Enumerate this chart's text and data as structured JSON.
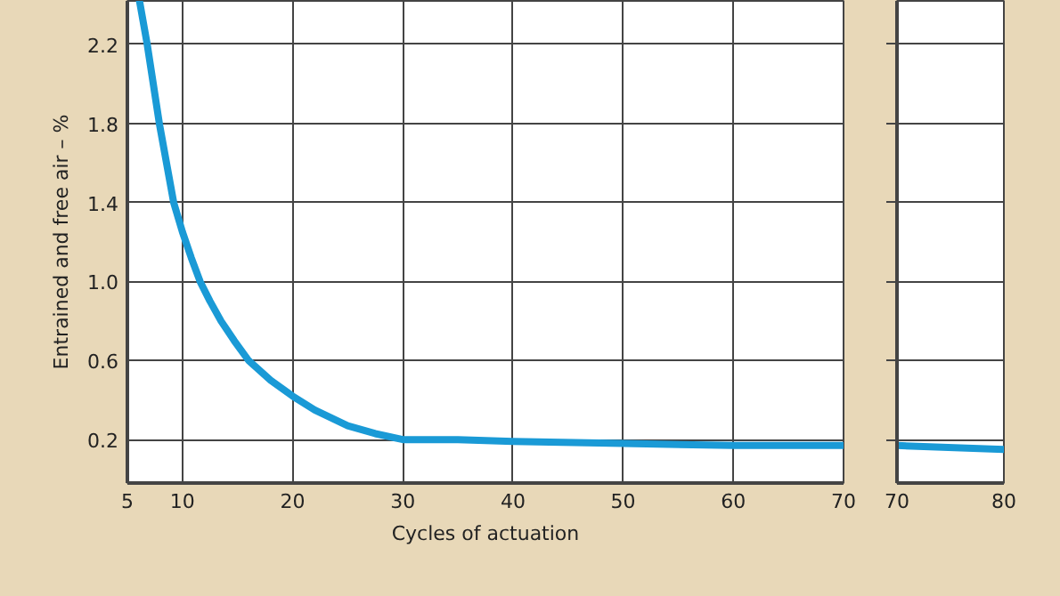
{
  "chart_data": [
    {
      "type": "line",
      "xlabel": "Cycles of actuation",
      "ylabel": "Entrained and free air – %",
      "xlim": [
        5,
        70
      ],
      "xticks": [
        5,
        10,
        20,
        30,
        40,
        50,
        60,
        70
      ],
      "ylim": [
        -0.02,
        2.42
      ],
      "yticks": [
        0.2,
        0.6,
        {
          "value": 1.0,
          "label": "1.0"
        },
        1.4,
        1.8,
        2.2
      ],
      "grid": true,
      "series": [
        {
          "color": "#1a9ad6",
          "x": [
            6.1,
            6.8,
            7.9,
            9.2,
            10,
            10.8,
            11.6,
            12.5,
            13.5,
            14.7,
            16.0,
            18,
            20,
            22,
            25,
            27.5,
            30,
            35,
            40,
            50,
            60,
            70
          ],
          "values": [
            2.42,
            2.2,
            1.8,
            1.4,
            1.25,
            1.12,
            1.0,
            0.9,
            0.8,
            0.7,
            0.6,
            0.5,
            0.42,
            0.35,
            0.27,
            0.23,
            0.2,
            0.2,
            0.19,
            0.18,
            0.17,
            0.17
          ]
        }
      ]
    },
    {
      "type": "line",
      "xlim": [
        70,
        80
      ],
      "xticks": [
        70,
        80
      ],
      "ylim": [
        -0.02,
        2.42
      ],
      "yticks": [
        {
          "value": 0.2,
          "label": null
        },
        {
          "value": 0.6,
          "label": null
        },
        {
          "value": 1.0,
          "label": null
        },
        {
          "value": 1.4,
          "label": null
        },
        {
          "value": 1.8,
          "label": null
        },
        {
          "value": 2.2,
          "label": null
        }
      ],
      "grid": "y",
      "tick_labels": "x",
      "series": [
        {
          "color": "#1a9ad6",
          "x": [
            70,
            80
          ],
          "values": [
            0.17,
            0.15
          ]
        }
      ]
    }
  ]
}
